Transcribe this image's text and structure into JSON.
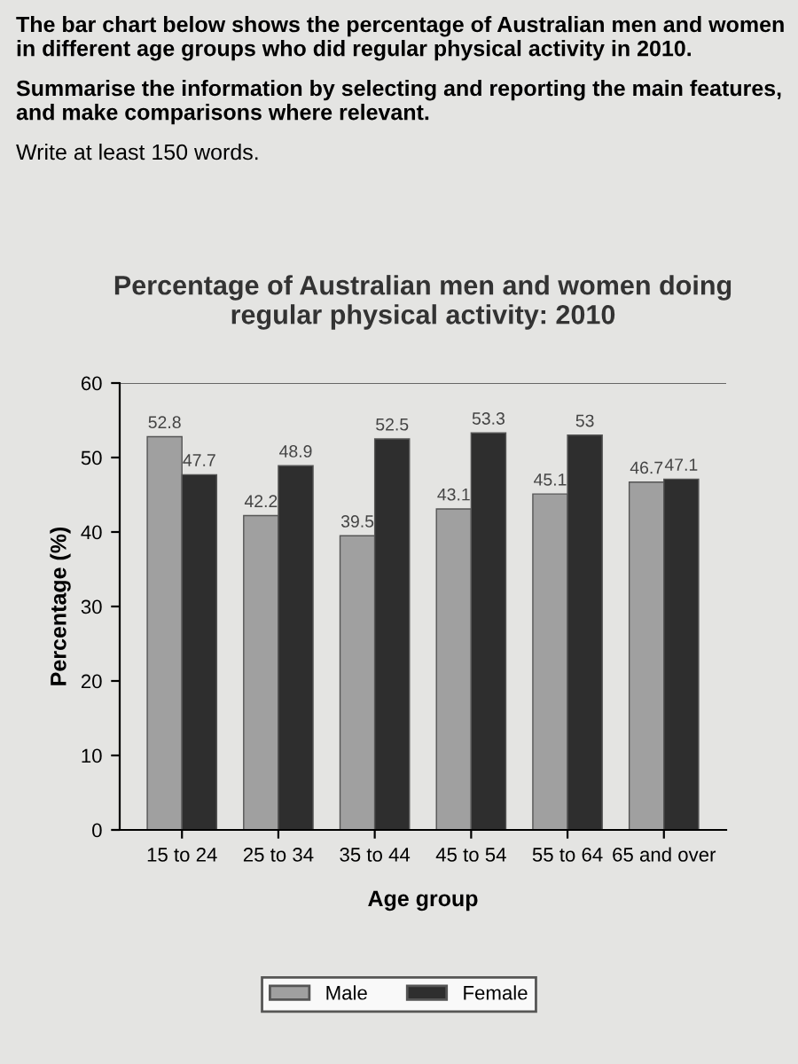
{
  "chart_data": {
    "type": "bar",
    "title": "Percentage of Australian men and women doing\nregular physical activity: 2010",
    "xlabel": "Age group",
    "ylabel": "Percentage (%)",
    "categories": [
      "15 to 24",
      "25 to 34",
      "35 to 44",
      "45 to 54",
      "55 to 64",
      "65 and over"
    ],
    "series": [
      {
        "name": "Male",
        "color": "#a0a0a0",
        "values": [
          52.8,
          42.2,
          39.5,
          43.1,
          45.1,
          46.7
        ]
      },
      {
        "name": "Female",
        "color": "#2e2e2e",
        "values": [
          47.7,
          48.9,
          52.5,
          53.3,
          53,
          47.1
        ]
      }
    ],
    "ylim": [
      0,
      60
    ],
    "yticks": [
      0,
      10,
      20,
      30,
      40,
      50,
      60
    ],
    "data_labels": true,
    "grid": false,
    "legend": "bottom",
    "annotations": [
      "The bar chart below shows the percentage of Australian men and women in different age groups who did regular physical activity in 2010.",
      "Summarise the information by selecting and reporting the main features, and make comparisons where relevant.",
      "Write at least 150 words."
    ]
  }
}
